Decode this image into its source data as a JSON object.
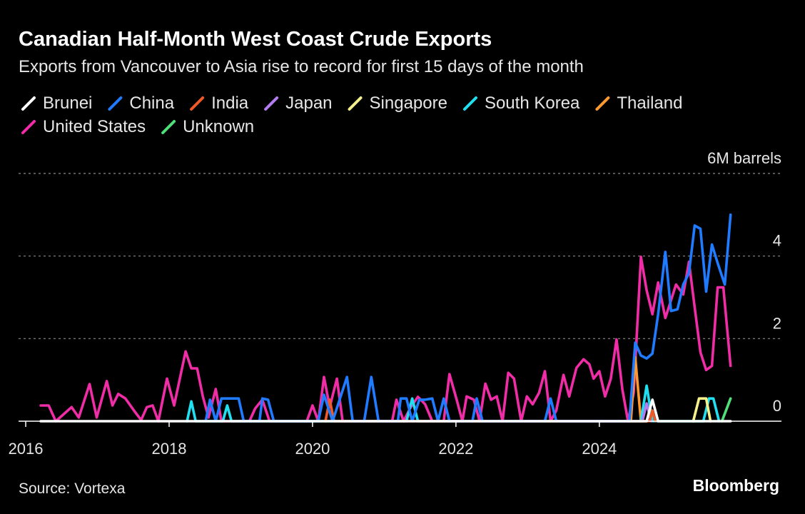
{
  "chart_data": {
    "type": "line",
    "title": "Canadian Half-Month West Coast Crude Exports",
    "subtitle": "Exports from Vancouver to Asia rise to record for first 15 days of the month",
    "source": "Source: Vortexa",
    "logo": "Bloomberg",
    "xlim": [
      2015.9,
      2026.5
    ],
    "xticks": [
      2016,
      2018,
      2020,
      2022,
      2024
    ],
    "ylim": [
      0,
      6
    ],
    "yticks": [
      0,
      2,
      4,
      {
        "value": 6,
        "label": "6M barrels"
      }
    ],
    "grid": true,
    "series": [
      {
        "name": "Brunei",
        "color": "#ffffff",
        "x": [
          2016.21,
          2024.66,
          2024.74,
          2024.82,
          2025.83
        ],
        "values": [
          0,
          0,
          0.52,
          0,
          0
        ]
      },
      {
        "name": "China",
        "color": "#1f7bff",
        "x": [
          2018.51,
          2018.57,
          2018.65,
          2018.73,
          2018.97,
          2019.04,
          2019.26,
          2019.3,
          2019.38,
          2019.46,
          2020.08,
          2020.16,
          2020.28,
          2020.48,
          2020.56,
          2020.72,
          2020.82,
          2020.92,
          2021.19,
          2021.23,
          2021.31,
          2021.39,
          2021.49,
          2021.57,
          2021.67,
          2021.75,
          2021.83,
          2021.91,
          2022.23,
          2022.29,
          2022.37,
          2023.24,
          2023.32,
          2023.4,
          2024.42,
          2024.5,
          2024.58,
          2024.66,
          2024.74,
          2024.82,
          2024.92,
          2025.0,
          2025.09,
          2025.17,
          2025.25,
          2025.33,
          2025.41,
          2025.49,
          2025.57,
          2025.65,
          2025.75,
          2025.83
        ],
        "values": [
          0,
          0.52,
          0,
          0.55,
          0.55,
          0,
          0,
          0.55,
          0.52,
          0,
          0,
          0.64,
          0,
          1.07,
          0,
          0,
          1.07,
          0,
          0,
          0.55,
          0.55,
          0,
          0.52,
          0.52,
          0.55,
          0,
          0.55,
          0,
          0,
          0.55,
          0,
          0,
          0.55,
          0,
          0,
          1.9,
          1.59,
          1.52,
          1.64,
          2.59,
          4.1,
          2.67,
          2.71,
          3.31,
          3.59,
          4.74,
          4.66,
          3.14,
          4.28,
          3.83,
          3.31,
          5.0
        ]
      },
      {
        "name": "India",
        "color": "#f05a28",
        "x": [
          2020.18,
          2020.24,
          2020.3,
          2024.7,
          2024.74,
          2024.78
        ],
        "values": [
          0,
          0.52,
          0,
          0,
          0.26,
          0
        ]
      },
      {
        "name": "Japan",
        "color": "#b57bf0",
        "x": [
          2024.6,
          2024.66,
          2024.72
        ],
        "values": [
          0,
          0.43,
          0
        ]
      },
      {
        "name": "Singapore",
        "color": "#f5f08a",
        "x": [
          2025.31,
          2025.39,
          2025.49,
          2025.55
        ],
        "values": [
          0,
          0.55,
          0.55,
          0
        ]
      },
      {
        "name": "South Korea",
        "color": "#1ee0f0",
        "x": [
          2018.25,
          2018.31,
          2018.37,
          2018.75,
          2018.81,
          2018.87,
          2021.31,
          2021.39,
          2021.47,
          2024.58,
          2024.66,
          2024.74,
          2025.45,
          2025.53,
          2025.59,
          2025.67
        ],
        "values": [
          0,
          0.48,
          0,
          0,
          0.38,
          0,
          0,
          0.55,
          0,
          0,
          0.86,
          0,
          0,
          0.55,
          0.55,
          0
        ]
      },
      {
        "name": "Thailand",
        "color": "#ff9a2e",
        "x": [
          2024.44,
          2024.5,
          2024.58
        ],
        "values": [
          0,
          1.55,
          0
        ]
      },
      {
        "name": "United States",
        "color": "#f02ca6",
        "x": [
          2016.21,
          2016.32,
          2016.42,
          2016.64,
          2016.74,
          2016.89,
          2016.99,
          2017.13,
          2017.21,
          2017.29,
          2017.39,
          2017.53,
          2017.61,
          2017.69,
          2017.77,
          2017.85,
          2017.97,
          2018.07,
          2018.23,
          2018.31,
          2018.39,
          2018.47,
          2018.55,
          2018.65,
          2018.73,
          2019.12,
          2019.2,
          2019.3,
          2019.4,
          2019.92,
          2020.0,
          2020.08,
          2020.16,
          2020.24,
          2020.34,
          2020.42,
          2021.11,
          2021.17,
          2021.27,
          2021.37,
          2021.47,
          2021.57,
          2021.67,
          2021.83,
          2021.91,
          2022.01,
          2022.09,
          2022.15,
          2022.25,
          2022.33,
          2022.41,
          2022.49,
          2022.57,
          2022.65,
          2022.73,
          2022.81,
          2022.91,
          2022.99,
          2023.07,
          2023.16,
          2023.24,
          2023.32,
          2023.4,
          2023.5,
          2023.58,
          2023.68,
          2023.78,
          2023.86,
          2023.92,
          2024.0,
          2024.08,
          2024.16,
          2024.24,
          2024.32,
          2024.4,
          2024.48,
          2024.58,
          2024.66,
          2024.74,
          2024.82,
          2024.92,
          2025.0,
          2025.07,
          2025.17,
          2025.25,
          2025.33,
          2025.41,
          2025.49,
          2025.57,
          2025.65,
          2025.73,
          2025.83
        ],
        "values": [
          0.38,
          0.38,
          0,
          0.34,
          0.09,
          0.9,
          0.09,
          0.97,
          0.38,
          0.66,
          0.55,
          0.21,
          0.03,
          0.34,
          0.38,
          0,
          1.03,
          0.38,
          1.69,
          1.28,
          1.28,
          0.6,
          0.09,
          0.78,
          0,
          0,
          0.31,
          0.52,
          0,
          0,
          0.38,
          0,
          1.07,
          0.34,
          1.03,
          0,
          0,
          0.52,
          0,
          0.34,
          0.59,
          0.41,
          0,
          0,
          1.14,
          0.52,
          0,
          0.6,
          0.52,
          0,
          0.91,
          0.52,
          0.6,
          0,
          1.17,
          1.03,
          0,
          0.6,
          0.41,
          0.69,
          1.21,
          0,
          0.26,
          1.12,
          0.6,
          1.29,
          1.5,
          1.38,
          1.03,
          1.21,
          0.6,
          1.03,
          1.98,
          0.78,
          0,
          0.69,
          3.98,
          3.17,
          2.59,
          3.36,
          2.5,
          2.93,
          3.31,
          3.07,
          3.86,
          2.76,
          1.67,
          1.24,
          1.34,
          3.24,
          3.24,
          1.34
        ]
      },
      {
        "name": "Unknown",
        "color": "#4fe07a",
        "x": [
          2025.71,
          2025.83
        ],
        "values": [
          0,
          0.55
        ]
      }
    ]
  }
}
